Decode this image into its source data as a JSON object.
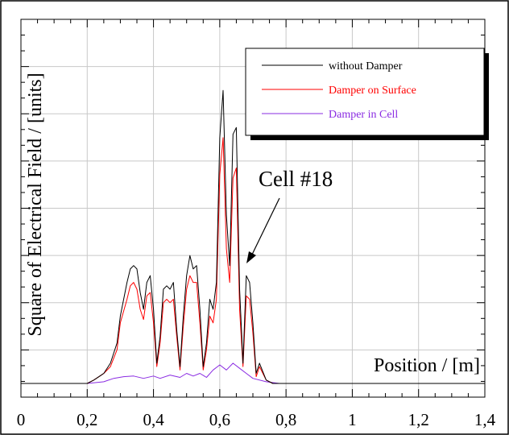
{
  "chart_data": {
    "type": "line",
    "xlabel": "Position / [m]",
    "ylabel": "Square of Electrical Field / [units]",
    "xlim": [
      0,
      1.4
    ],
    "ylim": [
      0,
      1
    ],
    "grid": true,
    "legend_position": "top-right",
    "x_tick_labels": [
      "0",
      "0,2",
      "0,4",
      "0,6",
      "0,8",
      "1",
      "1,2",
      "1,4"
    ],
    "annotation": {
      "text": "Cell #18",
      "x": 0.665,
      "y": 0.34
    },
    "series": [
      {
        "name": "without Damper",
        "color": "#000000",
        "points": [
          [
            0,
            0.0
          ],
          [
            0.2,
            0.0
          ],
          [
            0.22,
            0.01
          ],
          [
            0.25,
            0.03
          ],
          [
            0.27,
            0.06
          ],
          [
            0.29,
            0.12
          ],
          [
            0.3,
            0.2
          ],
          [
            0.32,
            0.3
          ],
          [
            0.33,
            0.34
          ],
          [
            0.34,
            0.35
          ],
          [
            0.35,
            0.34
          ],
          [
            0.36,
            0.27
          ],
          [
            0.37,
            0.22
          ],
          [
            0.38,
            0.3
          ],
          [
            0.39,
            0.32
          ],
          [
            0.4,
            0.22
          ],
          [
            0.41,
            0.06
          ],
          [
            0.42,
            0.14
          ],
          [
            0.43,
            0.28
          ],
          [
            0.44,
            0.29
          ],
          [
            0.45,
            0.28
          ],
          [
            0.46,
            0.3
          ],
          [
            0.47,
            0.16
          ],
          [
            0.48,
            0.05
          ],
          [
            0.49,
            0.2
          ],
          [
            0.5,
            0.32
          ],
          [
            0.51,
            0.38
          ],
          [
            0.52,
            0.34
          ],
          [
            0.53,
            0.35
          ],
          [
            0.54,
            0.22
          ],
          [
            0.55,
            0.05
          ],
          [
            0.56,
            0.12
          ],
          [
            0.57,
            0.25
          ],
          [
            0.58,
            0.22
          ],
          [
            0.59,
            0.3
          ],
          [
            0.6,
            0.73
          ],
          [
            0.61,
            0.87
          ],
          [
            0.62,
            0.5
          ],
          [
            0.63,
            0.35
          ],
          [
            0.64,
            0.74
          ],
          [
            0.65,
            0.76
          ],
          [
            0.66,
            0.28
          ],
          [
            0.67,
            0.06
          ],
          [
            0.68,
            0.32
          ],
          [
            0.69,
            0.3
          ],
          [
            0.7,
            0.18
          ],
          [
            0.71,
            0.03
          ],
          [
            0.72,
            0.06
          ],
          [
            0.74,
            0.01
          ],
          [
            0.76,
            0.0
          ],
          [
            1.4,
            0.0
          ]
        ]
      },
      {
        "name": "Damper on Surface",
        "color": "#ff0000",
        "points": [
          [
            0,
            0.0
          ],
          [
            0.2,
            0.0
          ],
          [
            0.22,
            0.01
          ],
          [
            0.25,
            0.03
          ],
          [
            0.27,
            0.05
          ],
          [
            0.29,
            0.1
          ],
          [
            0.3,
            0.18
          ],
          [
            0.32,
            0.25
          ],
          [
            0.33,
            0.29
          ],
          [
            0.34,
            0.3
          ],
          [
            0.35,
            0.28
          ],
          [
            0.36,
            0.22
          ],
          [
            0.37,
            0.19
          ],
          [
            0.38,
            0.26
          ],
          [
            0.39,
            0.27
          ],
          [
            0.4,
            0.18
          ],
          [
            0.41,
            0.05
          ],
          [
            0.42,
            0.12
          ],
          [
            0.43,
            0.24
          ],
          [
            0.44,
            0.25
          ],
          [
            0.45,
            0.24
          ],
          [
            0.46,
            0.25
          ],
          [
            0.47,
            0.14
          ],
          [
            0.48,
            0.04
          ],
          [
            0.49,
            0.17
          ],
          [
            0.5,
            0.28
          ],
          [
            0.51,
            0.32
          ],
          [
            0.52,
            0.3
          ],
          [
            0.53,
            0.3
          ],
          [
            0.54,
            0.18
          ],
          [
            0.55,
            0.04
          ],
          [
            0.56,
            0.1
          ],
          [
            0.57,
            0.2
          ],
          [
            0.58,
            0.18
          ],
          [
            0.59,
            0.25
          ],
          [
            0.6,
            0.62
          ],
          [
            0.61,
            0.73
          ],
          [
            0.62,
            0.4
          ],
          [
            0.63,
            0.3
          ],
          [
            0.64,
            0.61
          ],
          [
            0.65,
            0.64
          ],
          [
            0.66,
            0.22
          ],
          [
            0.67,
            0.05
          ],
          [
            0.68,
            0.26
          ],
          [
            0.69,
            0.25
          ],
          [
            0.7,
            0.15
          ],
          [
            0.71,
            0.02
          ],
          [
            0.72,
            0.05
          ],
          [
            0.74,
            0.01
          ],
          [
            0.76,
            0.0
          ],
          [
            1.4,
            0.0
          ]
        ]
      },
      {
        "name": "Damper in Cell",
        "color": "#8a2be2",
        "points": [
          [
            0,
            0.0
          ],
          [
            0.2,
            0.0
          ],
          [
            0.25,
            0.005
          ],
          [
            0.28,
            0.015
          ],
          [
            0.31,
            0.02
          ],
          [
            0.34,
            0.022
          ],
          [
            0.37,
            0.015
          ],
          [
            0.4,
            0.022
          ],
          [
            0.42,
            0.015
          ],
          [
            0.45,
            0.025
          ],
          [
            0.48,
            0.018
          ],
          [
            0.5,
            0.03
          ],
          [
            0.52,
            0.022
          ],
          [
            0.54,
            0.03
          ],
          [
            0.56,
            0.018
          ],
          [
            0.58,
            0.04
          ],
          [
            0.6,
            0.055
          ],
          [
            0.62,
            0.04
          ],
          [
            0.64,
            0.06
          ],
          [
            0.66,
            0.045
          ],
          [
            0.68,
            0.03
          ],
          [
            0.7,
            0.015
          ],
          [
            0.74,
            0.005
          ],
          [
            0.78,
            0.0
          ],
          [
            1.4,
            0.0
          ]
        ]
      }
    ]
  }
}
